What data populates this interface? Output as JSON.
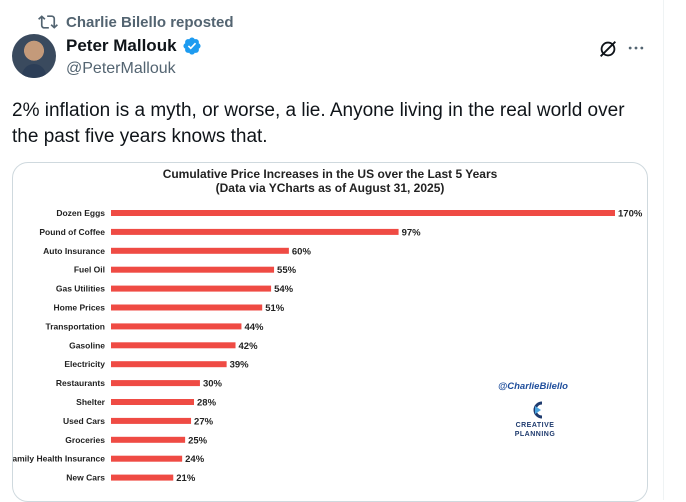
{
  "repost": {
    "label": "Charlie Bilello reposted",
    "icon": "repost-icon"
  },
  "author": {
    "name": "Peter Mallouk",
    "handle": "@PeterMallouk",
    "verified": true
  },
  "tweet": {
    "text": "2% inflation is a myth, or worse, a lie. Anyone living in the real world over the past five years knows that."
  },
  "colors": {
    "bar": "#ef4b44",
    "verified": "#1d9bf0"
  },
  "chart_data": {
    "type": "bar",
    "orientation": "horizontal",
    "title": "Cumulative Price Increases in the US over the Last 5 Years",
    "subtitle": "(Data via YCharts as of August 31, 2025)",
    "categories": [
      "Dozen Eggs",
      "Pound of Coffee",
      "Auto Insurance",
      "Fuel Oil",
      "Gas Utilities",
      "Home Prices",
      "Transportation",
      "Gasoline",
      "Electricity",
      "Restaurants",
      "Shelter",
      "Used Cars",
      "Groceries",
      "Family Health Insurance",
      "New Cars"
    ],
    "values": [
      170,
      97,
      60,
      55,
      54,
      51,
      44,
      42,
      39,
      30,
      28,
      27,
      25,
      24,
      21
    ],
    "value_labels": [
      "170%",
      "97%",
      "60%",
      "55%",
      "54%",
      "51%",
      "44%",
      "42%",
      "39%",
      "30%",
      "28%",
      "27%",
      "25%",
      "24%",
      "21%"
    ],
    "xlim": [
      0,
      170
    ],
    "grid": false,
    "legend": "none",
    "watermark": "@CharlieBilello",
    "brand": [
      "CREATIVE",
      "PLANNING"
    ]
  }
}
